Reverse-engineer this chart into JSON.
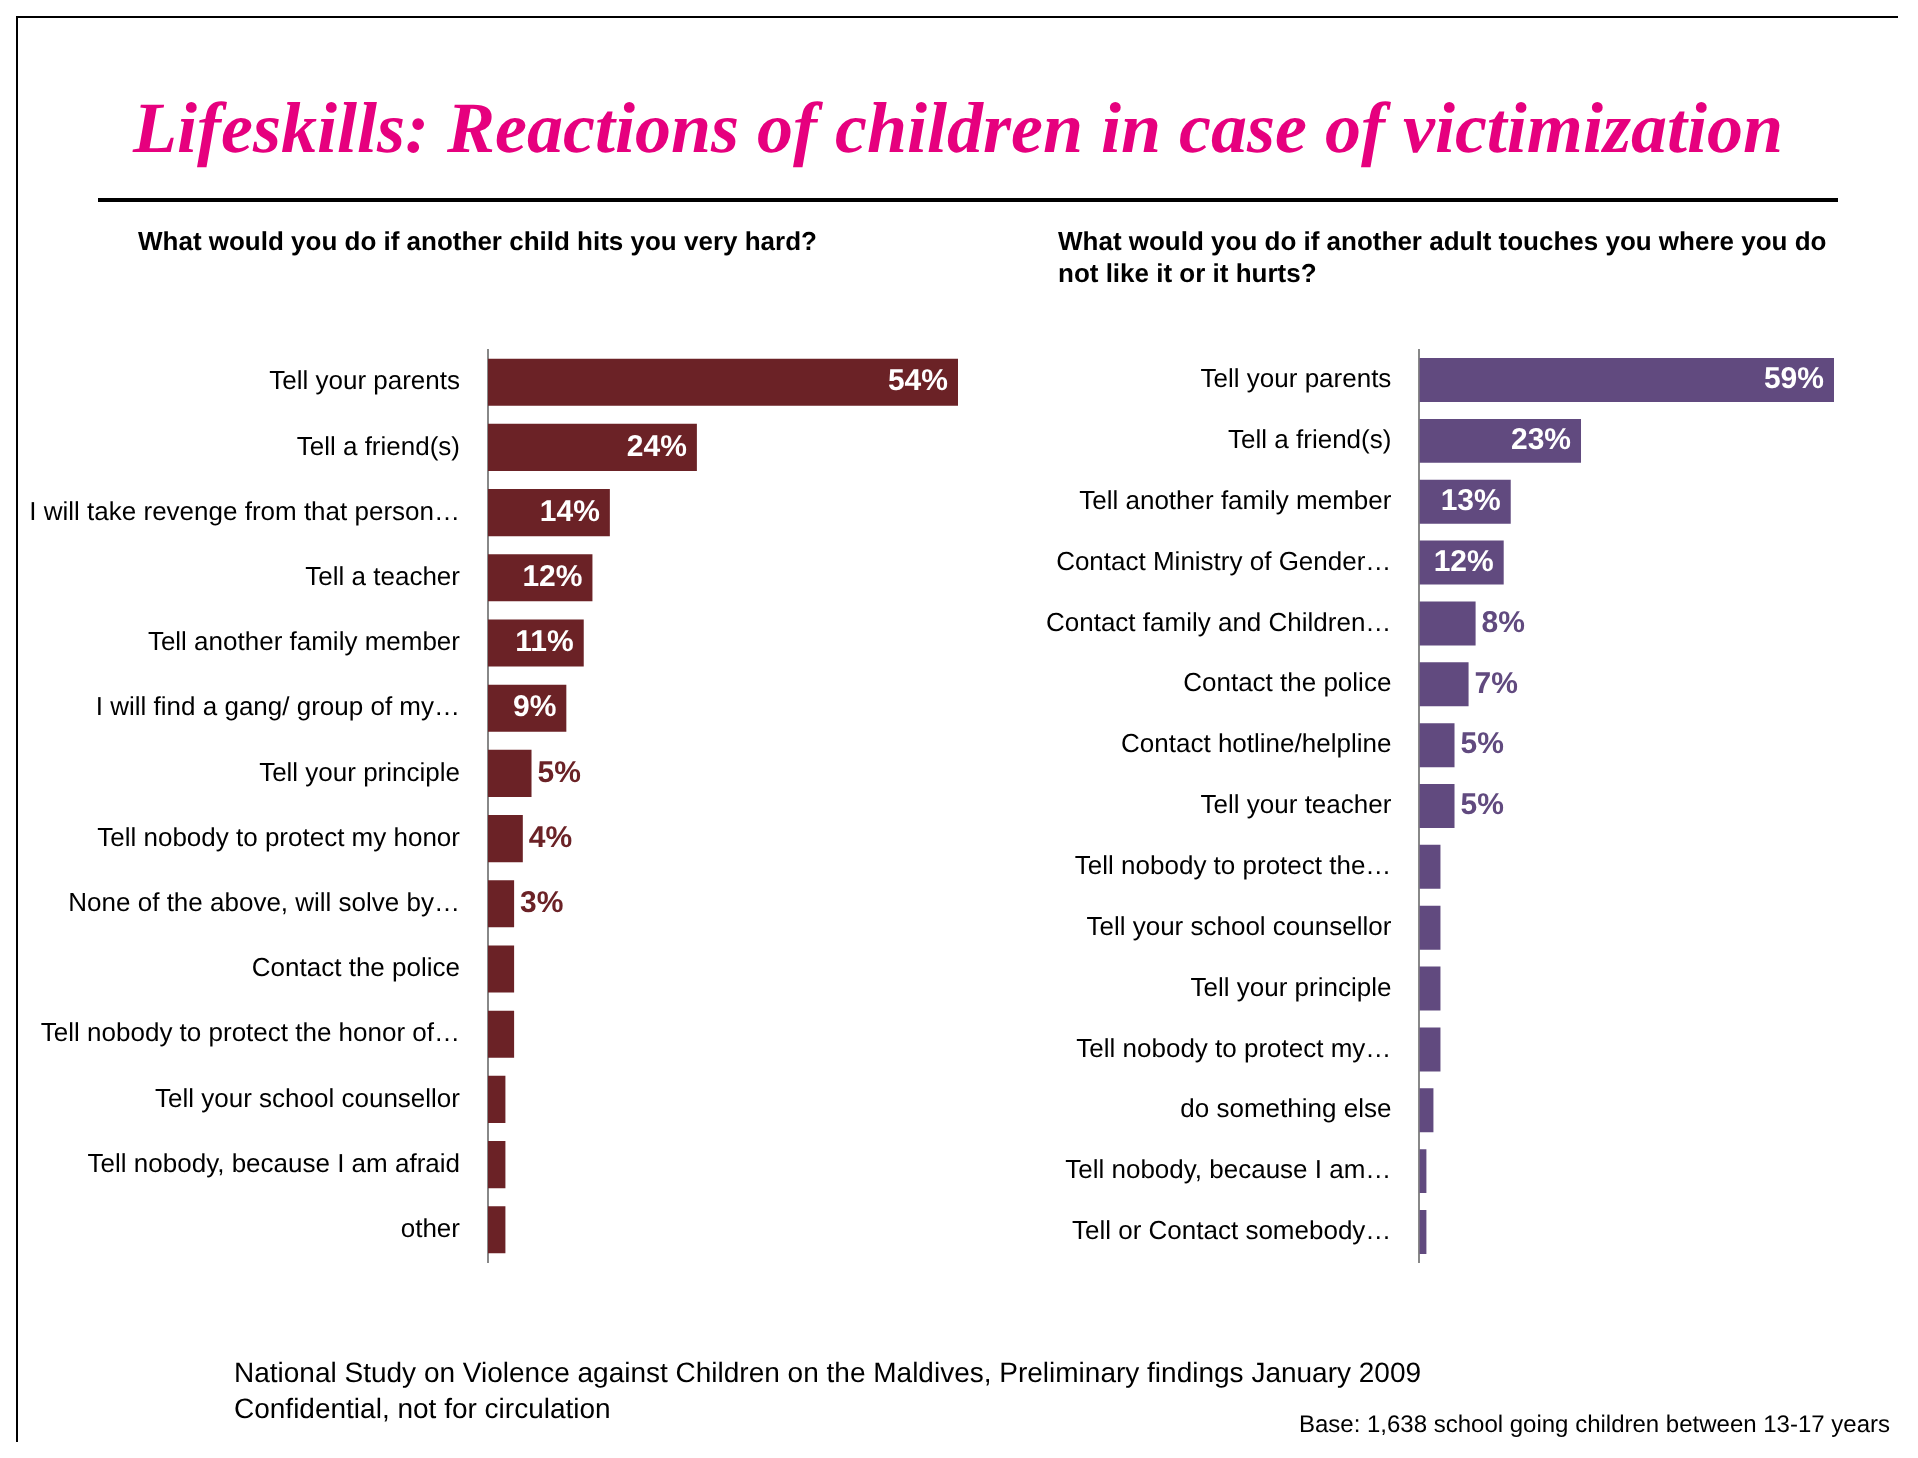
{
  "chart_data": [
    {
      "type": "bar",
      "orientation": "horizontal",
      "title": "Lifeskills: Reactions of children in case of victimization",
      "subtitle": "What would you do if another child hits you very hard?",
      "categories": [
        "Tell your parents",
        "Tell a friend(s)",
        "I will take revenge from that person…",
        "Tell a teacher",
        "Tell another family member",
        "I will find a gang/ group of my…",
        "Tell your principle",
        "Tell nobody to protect my honor",
        "None of the above, will solve by…",
        "Contact the police",
        "Tell nobody to protect the honor of…",
        "Tell your school counsellor",
        "Tell nobody, because I am afraid",
        "other"
      ],
      "values": [
        54,
        24,
        14,
        12,
        11,
        9,
        5,
        4,
        3,
        3,
        3,
        2,
        2,
        2
      ],
      "value_labels": [
        "54%",
        "24%",
        "14%",
        "12%",
        "11%",
        "9%",
        "5%",
        "4%",
        "3%",
        null,
        null,
        null,
        null,
        null
      ],
      "color": "#6b2226",
      "legend": false,
      "annotations": [
        "National Study on Violence against Children on the Maldives, Preliminary findings January 2009",
        "Confidential, not for circulation"
      ]
    },
    {
      "type": "bar",
      "orientation": "horizontal",
      "subtitle": "What would you do if another adult touches you where you do not like it or it hurts?",
      "categories": [
        "Tell your parents",
        "Tell a friend(s)",
        "Tell another family member",
        "Contact Ministry of Gender…",
        "Contact family and Children…",
        "Contact the police",
        "Contact hotline/helpline",
        "Tell your teacher",
        "Tell nobody to protect the…",
        "Tell your school counsellor",
        "Tell your principle",
        "Tell nobody to protect my…",
        "do something else",
        "Tell nobody, because I am…",
        "Tell or Contact somebody…"
      ],
      "values": [
        59,
        23,
        13,
        12,
        8,
        7,
        5,
        5,
        3,
        3,
        3,
        3,
        2,
        1,
        1
      ],
      "value_labels": [
        "59%",
        "23%",
        "13%",
        "12%",
        "8%",
        "7%",
        "5%",
        "5%",
        null,
        null,
        null,
        null,
        null,
        null,
        null
      ],
      "color": "#614a7f",
      "legend": false,
      "annotations": [
        "Base: 1,638 school going children between 13-17 years"
      ]
    }
  ]
}
